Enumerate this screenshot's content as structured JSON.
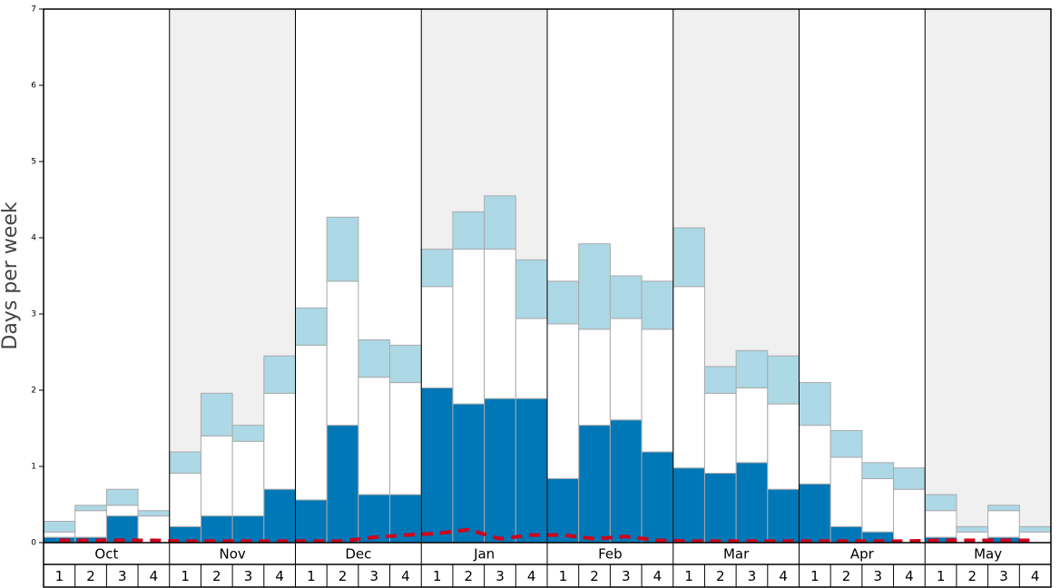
{
  "chart_data": {
    "type": "bar",
    "stacked": true,
    "y_label": "Days per week",
    "months": [
      "Oct",
      "Nov",
      "Dec",
      "Jan",
      "Feb",
      "Mar",
      "Apr",
      "May"
    ],
    "categories": [
      "1",
      "2",
      "3",
      "4",
      "1",
      "2",
      "3",
      "4",
      "1",
      "2",
      "3",
      "4",
      "1",
      "2",
      "3",
      "4",
      "1",
      "2",
      "3",
      "4",
      "1",
      "2",
      "3",
      "4",
      "1",
      "2",
      "3",
      "4",
      "1",
      "2",
      "3",
      "4"
    ],
    "ylim": [
      0,
      7
    ],
    "yticks": [
      0,
      1,
      2,
      3,
      4,
      5,
      6,
      7
    ],
    "shade_color": "#f0f0f0",
    "series": [
      {
        "color": "#0077b6",
        "values": [
          0.07,
          0.07,
          0.35,
          0,
          0.21,
          0.35,
          0.35,
          0.7,
          0.56,
          1.54,
          0.63,
          0.63,
          2.03,
          1.82,
          1.89,
          1.89,
          0.84,
          1.54,
          1.61,
          1.19,
          0.98,
          0.91,
          1.05,
          0.7,
          0.77,
          0.21,
          0.14,
          0,
          0.07,
          0,
          0.07,
          0
        ]
      },
      {
        "color": "#ffffff",
        "values": [
          0.07,
          0.35,
          0.14,
          0.35,
          0.7,
          1.05,
          0.98,
          1.26,
          2.03,
          1.89,
          1.54,
          1.47,
          1.33,
          2.03,
          1.96,
          1.05,
          2.03,
          1.26,
          1.33,
          1.61,
          2.38,
          1.05,
          0.98,
          1.12,
          0.77,
          0.91,
          0.7,
          0.7,
          0.35,
          0.14,
          0.35,
          0.14
        ]
      },
      {
        "color": "#add8e6",
        "values": [
          0.14,
          0.07,
          0.21,
          0.07,
          0.28,
          0.56,
          0.21,
          0.49,
          0.49,
          0.84,
          0.49,
          0.49,
          0.49,
          0.49,
          0.7,
          0.77,
          0.56,
          1.12,
          0.56,
          0.63,
          0.77,
          0.35,
          0.49,
          0.63,
          0.56,
          0.35,
          0.21,
          0.28,
          0.21,
          0.07,
          0.07,
          0.07
        ]
      },
      {
        "color": "#d0021b",
        "line": "dashed",
        "values": [
          0.03,
          0.03,
          0.03,
          0.03,
          0.02,
          0.02,
          0.02,
          0.02,
          0.02,
          0.02,
          0.07,
          0.1,
          0.12,
          0.17,
          0.05,
          0.1,
          0.1,
          0.05,
          0.08,
          0.03,
          0.02,
          0.02,
          0.02,
          0.02,
          0.02,
          0.02,
          0.02,
          0.02,
          0.03,
          0.03,
          0.03,
          0.03
        ]
      }
    ]
  }
}
